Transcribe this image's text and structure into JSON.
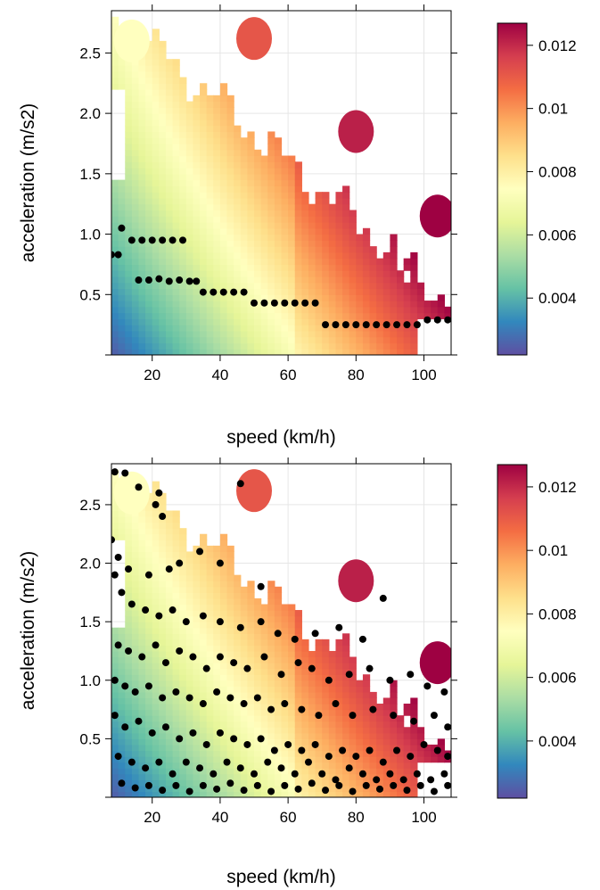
{
  "chart_data": [
    {
      "type": "heatmap",
      "panel": "top",
      "xlabel": "speed (km/h)",
      "ylabel": "acceleration (m/s2)",
      "xlim": [
        8,
        108
      ],
      "ylim": [
        0,
        2.85
      ],
      "x_ticks": [
        20,
        40,
        60,
        80,
        100
      ],
      "x_tick_labels": [
        "20",
        "40",
        "60",
        "80",
        "100"
      ],
      "y_ticks": [
        0.5,
        1.0,
        1.5,
        2.0,
        2.5
      ],
      "y_tick_labels": [
        "0.5",
        "1.0",
        "1.5",
        "2.0",
        "2.5"
      ],
      "grid": true,
      "colorbar": {
        "range": [
          0.0022,
          0.0127
        ],
        "ticks": [
          0.004,
          0.006,
          0.008,
          0.01,
          0.012
        ],
        "tick_labels": [
          "0.004",
          "0.006",
          "0.008",
          "0.01",
          "0.012"
        ],
        "palette": [
          "#5E4FA2",
          "#3288BD",
          "#66C2A5",
          "#ABDDA4",
          "#E6F598",
          "#FFFFBF",
          "#FEE08B",
          "#FDAE61",
          "#F46D43",
          "#D53E4F",
          "#9E0142"
        ]
      },
      "points": [
        [
          8,
          0.83
        ],
        [
          10,
          0.83
        ],
        [
          11,
          1.05
        ],
        [
          14,
          0.95
        ],
        [
          17,
          0.95
        ],
        [
          20,
          0.95
        ],
        [
          23,
          0.95
        ],
        [
          26,
          0.95
        ],
        [
          29,
          0.95
        ],
        [
          16,
          0.62
        ],
        [
          19,
          0.62
        ],
        [
          22,
          0.63
        ],
        [
          25,
          0.61
        ],
        [
          28,
          0.62
        ],
        [
          31,
          0.61
        ],
        [
          33,
          0.61
        ],
        [
          35,
          0.52
        ],
        [
          38,
          0.52
        ],
        [
          41,
          0.52
        ],
        [
          44,
          0.52
        ],
        [
          47,
          0.52
        ],
        [
          50,
          0.43
        ],
        [
          53,
          0.43
        ],
        [
          56,
          0.43
        ],
        [
          59,
          0.43
        ],
        [
          62,
          0.43
        ],
        [
          65,
          0.43
        ],
        [
          68,
          0.43
        ],
        [
          71,
          0.25
        ],
        [
          74,
          0.25
        ],
        [
          77,
          0.25
        ],
        [
          80,
          0.25
        ],
        [
          83,
          0.25
        ],
        [
          86,
          0.25
        ],
        [
          89,
          0.25
        ],
        [
          92,
          0.25
        ],
        [
          95,
          0.25
        ],
        [
          98,
          0.25
        ],
        [
          101,
          0.29
        ],
        [
          104,
          0.29
        ],
        [
          107,
          0.29
        ]
      ]
    },
    {
      "type": "heatmap",
      "panel": "bottom",
      "xlabel": "speed (km/h)",
      "ylabel": "acceleration (m/s2)",
      "xlim": [
        8,
        108
      ],
      "ylim": [
        0,
        2.85
      ],
      "x_ticks": [
        20,
        40,
        60,
        80,
        100
      ],
      "x_tick_labels": [
        "20",
        "40",
        "60",
        "80",
        "100"
      ],
      "y_ticks": [
        0.5,
        1.0,
        1.5,
        2.0,
        2.5
      ],
      "y_tick_labels": [
        "0.5",
        "1.0",
        "1.5",
        "2.0",
        "2.5"
      ],
      "grid": true,
      "colorbar": {
        "range": [
          0.0022,
          0.0127
        ],
        "ticks": [
          0.004,
          0.006,
          0.008,
          0.01,
          0.012
        ],
        "tick_labels": [
          "0.004",
          "0.006",
          "0.008",
          "0.01",
          "0.012"
        ],
        "palette": [
          "#5E4FA2",
          "#3288BD",
          "#66C2A5",
          "#ABDDA4",
          "#E6F598",
          "#FFFFBF",
          "#FEE08B",
          "#FDAE61",
          "#F46D43",
          "#D53E4F",
          "#9E0142"
        ]
      },
      "points": [
        [
          9,
          2.78
        ],
        [
          12,
          2.77
        ],
        [
          16,
          2.65
        ],
        [
          22,
          2.6
        ],
        [
          21,
          2.5
        ],
        [
          23,
          2.4
        ],
        [
          46,
          2.68
        ],
        [
          8,
          2.2
        ],
        [
          10,
          2.05
        ],
        [
          13,
          1.95
        ],
        [
          19,
          1.9
        ],
        [
          25,
          1.95
        ],
        [
          28,
          2.0
        ],
        [
          34,
          2.1
        ],
        [
          40,
          2.0
        ],
        [
          52,
          1.8
        ],
        [
          88,
          1.7
        ],
        [
          9,
          1.9
        ],
        [
          11,
          1.75
        ],
        [
          14,
          1.65
        ],
        [
          18,
          1.6
        ],
        [
          22,
          1.55
        ],
        [
          26,
          1.6
        ],
        [
          30,
          1.5
        ],
        [
          35,
          1.55
        ],
        [
          40,
          1.5
        ],
        [
          46,
          1.45
        ],
        [
          52,
          1.5
        ],
        [
          57,
          1.4
        ],
        [
          62,
          1.35
        ],
        [
          68,
          1.4
        ],
        [
          75,
          1.45
        ],
        [
          82,
          1.35
        ],
        [
          10,
          1.3
        ],
        [
          13,
          1.25
        ],
        [
          17,
          1.2
        ],
        [
          21,
          1.3
        ],
        [
          24,
          1.15
        ],
        [
          28,
          1.25
        ],
        [
          32,
          1.2
        ],
        [
          36,
          1.1
        ],
        [
          40,
          1.2
        ],
        [
          44,
          1.15
        ],
        [
          48,
          1.1
        ],
        [
          53,
          1.2
        ],
        [
          58,
          1.05
        ],
        [
          63,
          1.15
        ],
        [
          67,
          1.1
        ],
        [
          72,
          1.0
        ],
        [
          78,
          1.05
        ],
        [
          84,
          1.1
        ],
        [
          90,
          1.0
        ],
        [
          96,
          1.05
        ],
        [
          101,
          0.95
        ],
        [
          106,
          0.9
        ],
        [
          9,
          1.0
        ],
        [
          12,
          0.95
        ],
        [
          15,
          0.9
        ],
        [
          19,
          0.95
        ],
        [
          23,
          0.85
        ],
        [
          27,
          0.9
        ],
        [
          31,
          0.85
        ],
        [
          35,
          0.8
        ],
        [
          39,
          0.9
        ],
        [
          43,
          0.85
        ],
        [
          47,
          0.8
        ],
        [
          51,
          0.85
        ],
        [
          55,
          0.75
        ],
        [
          59,
          0.8
        ],
        [
          64,
          0.75
        ],
        [
          69,
          0.7
        ],
        [
          74,
          0.8
        ],
        [
          79,
          0.7
        ],
        [
          85,
          0.75
        ],
        [
          91,
          0.7
        ],
        [
          97,
          0.65
        ],
        [
          103,
          0.7
        ],
        [
          107,
          0.6
        ],
        [
          9,
          0.7
        ],
        [
          12,
          0.6
        ],
        [
          16,
          0.65
        ],
        [
          20,
          0.55
        ],
        [
          24,
          0.6
        ],
        [
          28,
          0.5
        ],
        [
          32,
          0.55
        ],
        [
          36,
          0.45
        ],
        [
          40,
          0.55
        ],
        [
          44,
          0.5
        ],
        [
          48,
          0.45
        ],
        [
          52,
          0.5
        ],
        [
          56,
          0.4
        ],
        [
          60,
          0.45
        ],
        [
          64,
          0.4
        ],
        [
          68,
          0.45
        ],
        [
          72,
          0.35
        ],
        [
          76,
          0.4
        ],
        [
          80,
          0.35
        ],
        [
          84,
          0.4
        ],
        [
          88,
          0.3
        ],
        [
          92,
          0.4
        ],
        [
          96,
          0.35
        ],
        [
          100,
          0.45
        ],
        [
          104,
          0.4
        ],
        [
          107,
          0.35
        ],
        [
          10,
          0.35
        ],
        [
          14,
          0.3
        ],
        [
          18,
          0.25
        ],
        [
          22,
          0.3
        ],
        [
          26,
          0.2
        ],
        [
          30,
          0.3
        ],
        [
          34,
          0.25
        ],
        [
          38,
          0.2
        ],
        [
          42,
          0.3
        ],
        [
          46,
          0.25
        ],
        [
          50,
          0.2
        ],
        [
          54,
          0.3
        ],
        [
          58,
          0.25
        ],
        [
          62,
          0.2
        ],
        [
          66,
          0.3
        ],
        [
          70,
          0.2
        ],
        [
          74,
          0.15
        ],
        [
          78,
          0.25
        ],
        [
          82,
          0.2
        ],
        [
          86,
          0.15
        ],
        [
          90,
          0.2
        ],
        [
          94,
          0.15
        ],
        [
          98,
          0.2
        ],
        [
          102,
          0.15
        ],
        [
          106,
          0.2
        ],
        [
          11,
          0.12
        ],
        [
          15,
          0.08
        ],
        [
          19,
          0.1
        ],
        [
          23,
          0.06
        ],
        [
          27,
          0.1
        ],
        [
          31,
          0.05
        ],
        [
          35,
          0.1
        ],
        [
          39,
          0.07
        ],
        [
          43,
          0.12
        ],
        [
          47,
          0.06
        ],
        [
          51,
          0.1
        ],
        [
          55,
          0.05
        ],
        [
          59,
          0.1
        ],
        [
          63,
          0.07
        ],
        [
          67,
          0.12
        ],
        [
          71,
          0.06
        ],
        [
          75,
          0.1
        ],
        [
          79,
          0.05
        ],
        [
          83,
          0.1
        ],
        [
          87,
          0.07
        ],
        [
          91,
          0.1
        ],
        [
          95,
          0.06
        ],
        [
          99,
          0.1
        ],
        [
          103,
          0.05
        ],
        [
          107,
          0.1
        ]
      ]
    }
  ]
}
